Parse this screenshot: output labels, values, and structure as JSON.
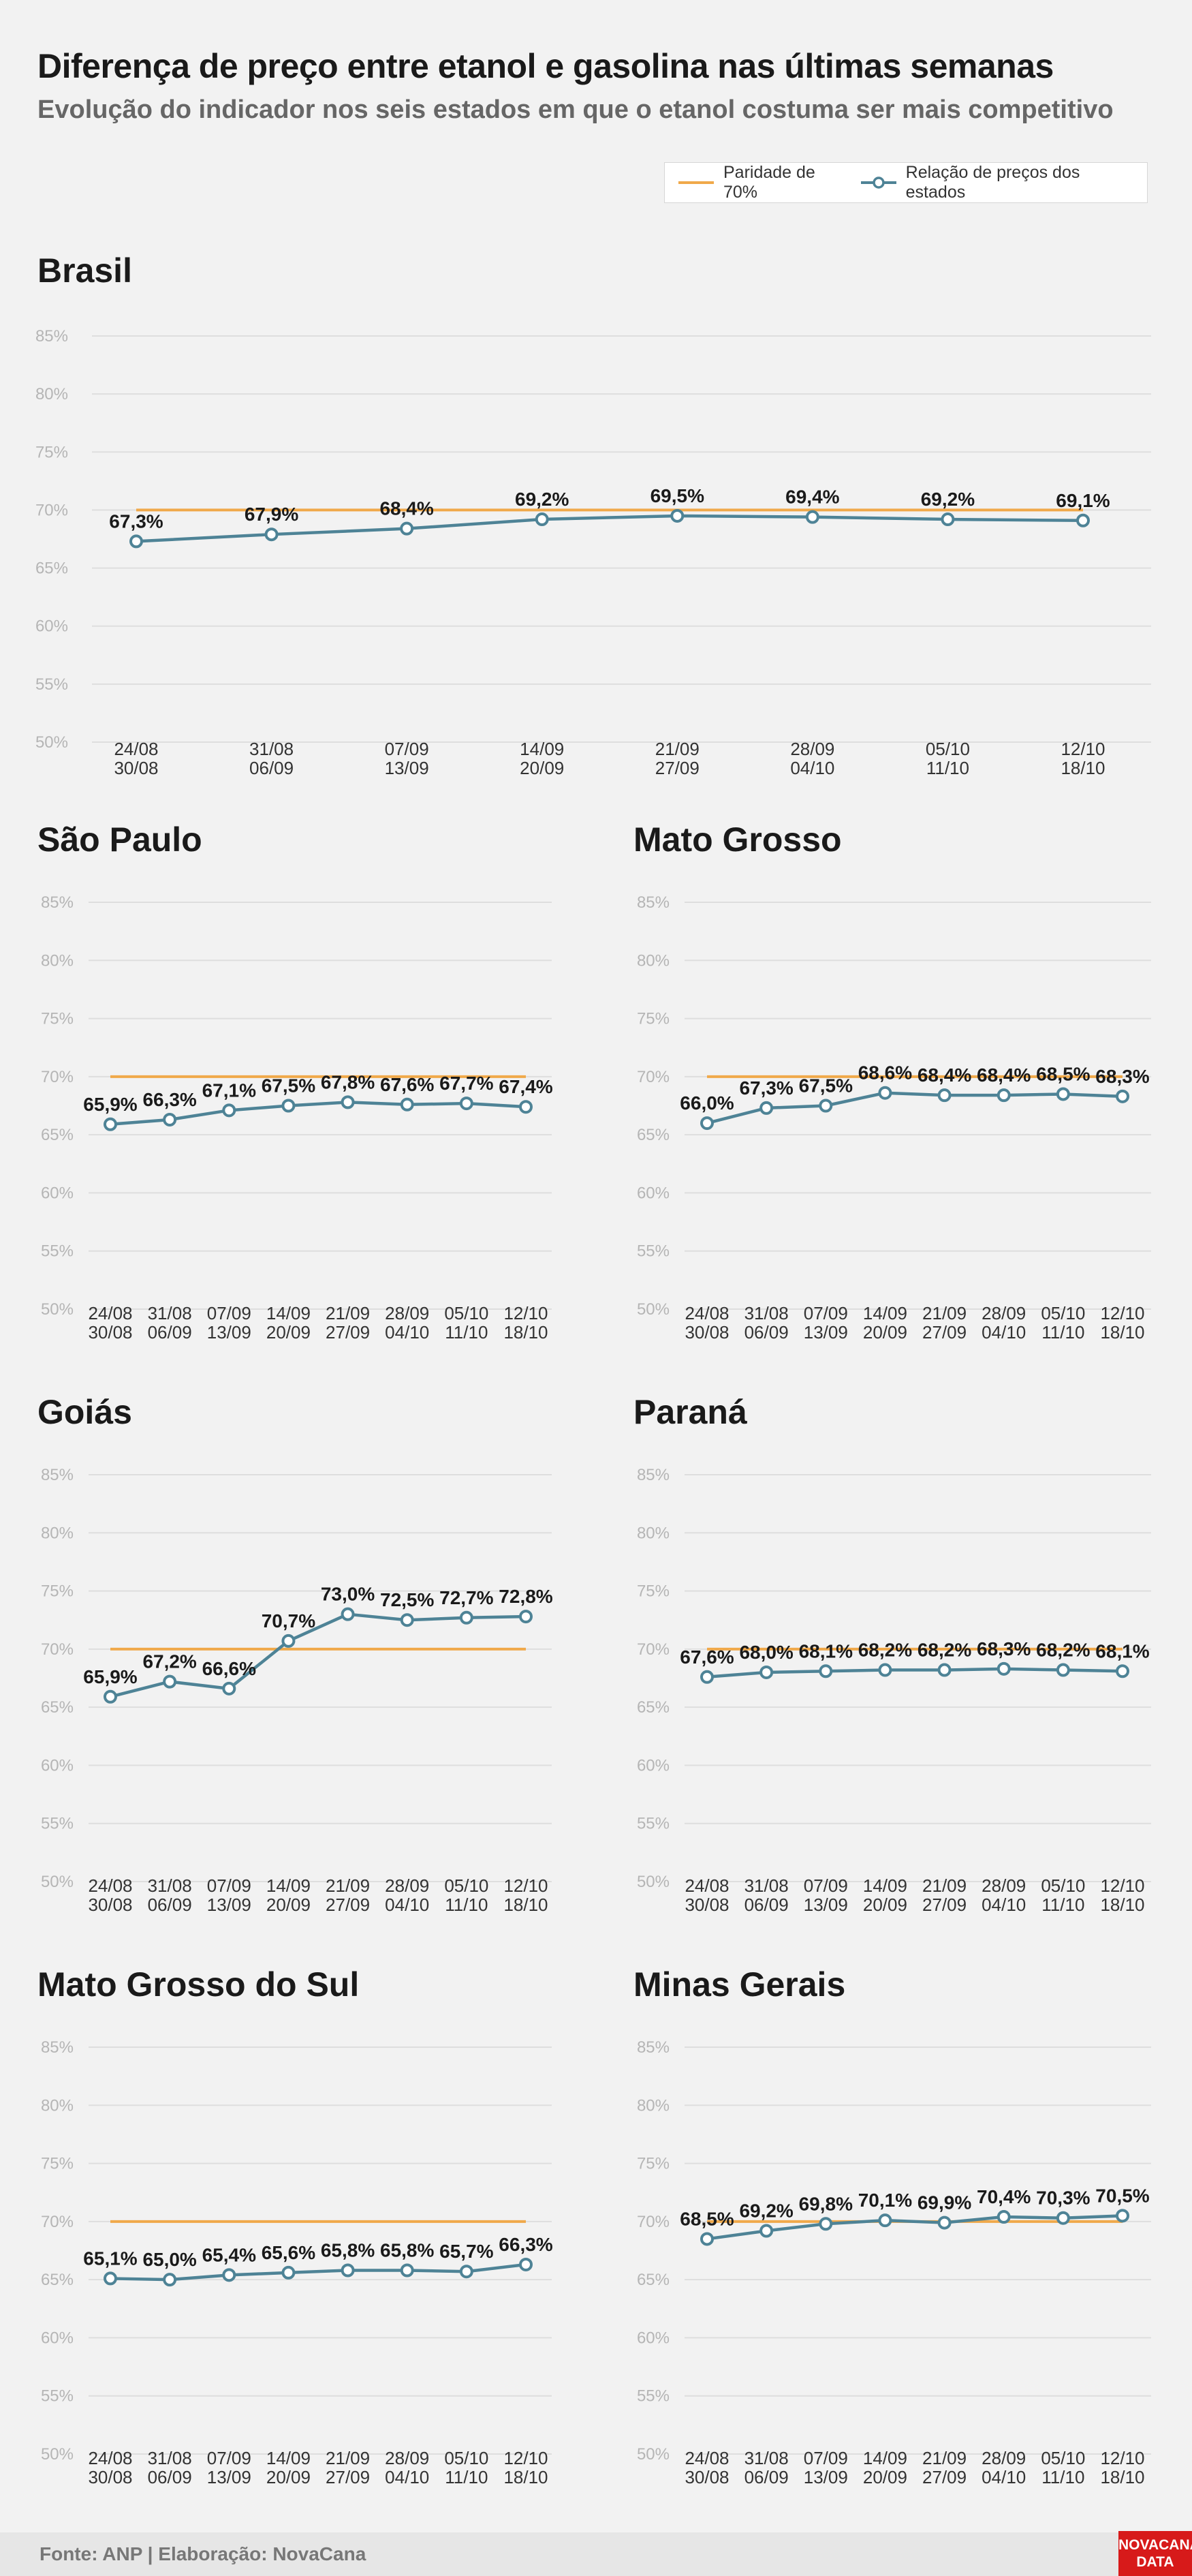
{
  "header": {
    "title": "Diferença de preço entre etanol e gasolina nas últimas semanas",
    "subtitle": "Evolução do indicador nos seis estados em que o etanol costuma ser mais competitivo"
  },
  "legend": {
    "parity_label": "Paridade de 70%",
    "series_label": "Relação de preços dos estados"
  },
  "colors": {
    "parity_line": "#f0a94a",
    "series_line": "#4e8396",
    "marker_fill": "#ffffff",
    "gridline": "#dedede",
    "background": "#f2f2f2"
  },
  "footer": {
    "source": "Fonte: ANP | Elaboração: NovaCana",
    "logo_line1": "NOVACANA",
    "logo_line2": "DATA"
  },
  "chart_data": [
    {
      "type": "line",
      "title": "Brasil",
      "categories": [
        "24/08\n30/08",
        "31/08\n06/09",
        "07/09\n13/09",
        "14/09\n20/09",
        "21/09\n27/09",
        "28/09\n04/10",
        "05/10\n11/10",
        "12/10\n18/10"
      ],
      "values": [
        67.3,
        67.9,
        68.4,
        69.2,
        69.5,
        69.4,
        69.2,
        69.1
      ],
      "value_labels": [
        "67,3%",
        "67,9%",
        "68,4%",
        "69,2%",
        "69,5%",
        "69,4%",
        "69,2%",
        "69,1%"
      ],
      "parity": 70,
      "ylim": [
        50,
        85
      ],
      "yticks": [
        "50%",
        "55%",
        "60%",
        "65%",
        "70%",
        "75%",
        "80%",
        "85%"
      ],
      "grid": true
    },
    {
      "type": "line",
      "title": "São Paulo",
      "categories": [
        "24/08\n30/08",
        "31/08\n06/09",
        "07/09\n13/09",
        "14/09\n20/09",
        "21/09\n27/09",
        "28/09\n04/10",
        "05/10\n11/10",
        "12/10\n18/10"
      ],
      "values": [
        65.9,
        66.3,
        67.1,
        67.5,
        67.8,
        67.6,
        67.7,
        67.4
      ],
      "value_labels": [
        "65,9%",
        "66,3%",
        "67,1%",
        "67,5%",
        "67,8%",
        "67,6%",
        "67,7%",
        "67,4%"
      ],
      "parity": 70,
      "ylim": [
        50,
        85
      ],
      "yticks": [
        "50%",
        "55%",
        "60%",
        "65%",
        "70%",
        "75%",
        "80%",
        "85%"
      ],
      "grid": true
    },
    {
      "type": "line",
      "title": "Mato Grosso",
      "categories": [
        "24/08\n30/08",
        "31/08\n06/09",
        "07/09\n13/09",
        "14/09\n20/09",
        "21/09\n27/09",
        "28/09\n04/10",
        "05/10\n11/10",
        "12/10\n18/10"
      ],
      "values": [
        66.0,
        67.3,
        67.5,
        68.6,
        68.4,
        68.4,
        68.5,
        68.3
      ],
      "value_labels": [
        "66,0%",
        "67,3%",
        "67,5%",
        "68,6%",
        "68,4%",
        "68,4%",
        "68,5%",
        "68,3%"
      ],
      "parity": 70,
      "ylim": [
        50,
        85
      ],
      "yticks": [
        "50%",
        "55%",
        "60%",
        "65%",
        "70%",
        "75%",
        "80%",
        "85%"
      ],
      "grid": true
    },
    {
      "type": "line",
      "title": "Goiás",
      "categories": [
        "24/08\n30/08",
        "31/08\n06/09",
        "07/09\n13/09",
        "14/09\n20/09",
        "21/09\n27/09",
        "28/09\n04/10",
        "05/10\n11/10",
        "12/10\n18/10"
      ],
      "values": [
        65.9,
        67.2,
        66.6,
        70.7,
        73.0,
        72.5,
        72.7,
        72.8
      ],
      "value_labels": [
        "65,9%",
        "67,2%",
        "66,6%",
        "70,7%",
        "73,0%",
        "72,5%",
        "72,7%",
        "72,8%"
      ],
      "parity": 70,
      "ylim": [
        50,
        85
      ],
      "yticks": [
        "50%",
        "55%",
        "60%",
        "65%",
        "70%",
        "75%",
        "80%",
        "85%"
      ],
      "grid": true
    },
    {
      "type": "line",
      "title": "Paraná",
      "categories": [
        "24/08\n30/08",
        "31/08\n06/09",
        "07/09\n13/09",
        "14/09\n20/09",
        "21/09\n27/09",
        "28/09\n04/10",
        "05/10\n11/10",
        "12/10\n18/10"
      ],
      "values": [
        67.6,
        68.0,
        68.1,
        68.2,
        68.2,
        68.3,
        68.2,
        68.1
      ],
      "value_labels": [
        "67,6%",
        "68,0%",
        "68,1%",
        "68,2%",
        "68,2%",
        "68,3%",
        "68,2%",
        "68,1%"
      ],
      "parity": 70,
      "ylim": [
        50,
        85
      ],
      "yticks": [
        "50%",
        "55%",
        "60%",
        "65%",
        "70%",
        "75%",
        "80%",
        "85%"
      ],
      "grid": true
    },
    {
      "type": "line",
      "title": "Mato Grosso do Sul",
      "categories": [
        "24/08\n30/08",
        "31/08\n06/09",
        "07/09\n13/09",
        "14/09\n20/09",
        "21/09\n27/09",
        "28/09\n04/10",
        "05/10\n11/10",
        "12/10\n18/10"
      ],
      "values": [
        65.1,
        65.0,
        65.4,
        65.6,
        65.8,
        65.8,
        65.7,
        66.3
      ],
      "value_labels": [
        "65,1%",
        "65,0%",
        "65,4%",
        "65,6%",
        "65,8%",
        "65,8%",
        "65,7%",
        "66,3%"
      ],
      "parity": 70,
      "ylim": [
        50,
        85
      ],
      "yticks": [
        "50%",
        "55%",
        "60%",
        "65%",
        "70%",
        "75%",
        "80%",
        "85%"
      ],
      "grid": true
    },
    {
      "type": "line",
      "title": "Minas Gerais",
      "categories": [
        "24/08\n30/08",
        "31/08\n06/09",
        "07/09\n13/09",
        "14/09\n20/09",
        "21/09\n27/09",
        "28/09\n04/10",
        "05/10\n11/10",
        "12/10\n18/10"
      ],
      "values": [
        68.5,
        69.2,
        69.8,
        70.1,
        69.9,
        70.4,
        70.3,
        70.5
      ],
      "value_labels": [
        "68,5%",
        "69,2%",
        "69,8%",
        "70,1%",
        "69,9%",
        "70,4%",
        "70,3%",
        "70,5%"
      ],
      "parity": 70,
      "ylim": [
        50,
        85
      ],
      "yticks": [
        "50%",
        "55%",
        "60%",
        "65%",
        "70%",
        "75%",
        "80%",
        "85%"
      ],
      "grid": true
    }
  ]
}
